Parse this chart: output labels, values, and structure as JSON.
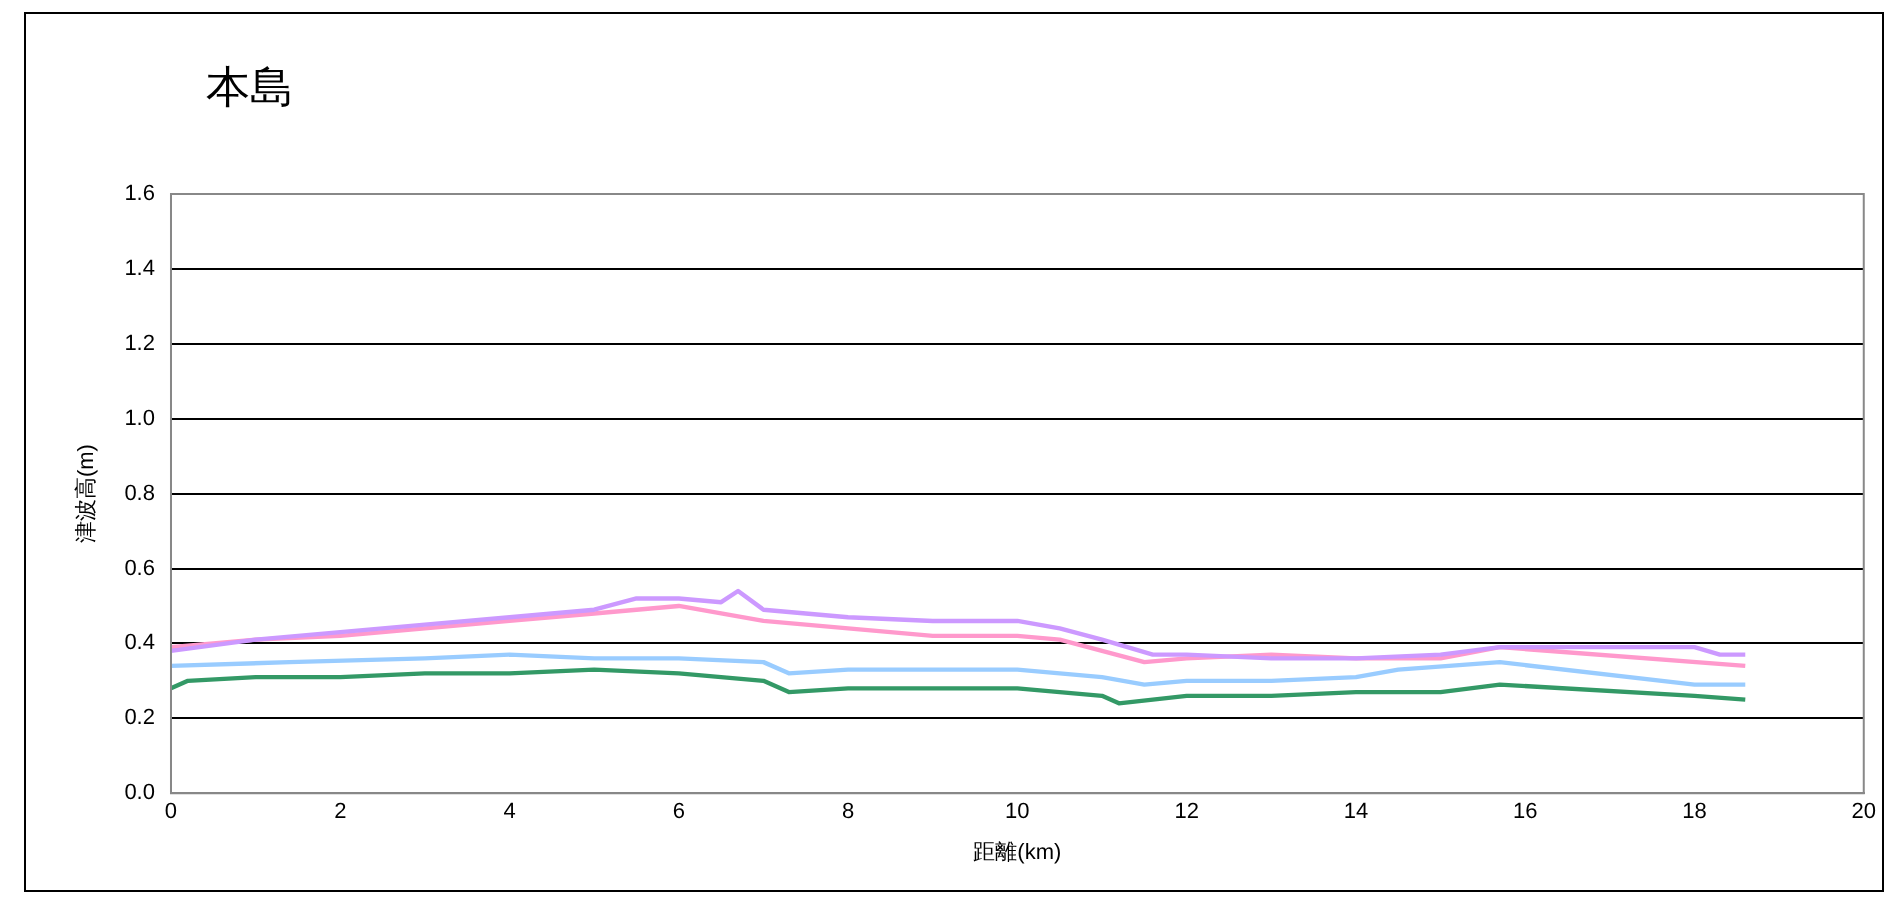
{
  "chart_data": {
    "type": "line",
    "title": "本島",
    "xlabel": "距離(km)",
    "ylabel": "津波高(m)",
    "xlim": [
      0,
      20
    ],
    "xticks": [
      0,
      2,
      4,
      6,
      8,
      10,
      12,
      14,
      16,
      18,
      20
    ],
    "ylim": [
      0,
      1.6
    ],
    "yticks": [
      {
        "value": 0,
        "label": "0.0"
      },
      {
        "value": 0.2,
        "label": "0.2"
      },
      {
        "value": 0.4,
        "label": "0.4"
      },
      {
        "value": 0.6,
        "label": "0.6"
      },
      {
        "value": 0.8,
        "label": "0.8"
      },
      {
        "value": 1,
        "label": "1.0"
      },
      {
        "value": 1.2,
        "label": "1.2"
      },
      {
        "value": 1.4,
        "label": "1.4"
      },
      {
        "value": 1.6,
        "label": "1.6"
      }
    ],
    "grid": "y",
    "legend": false,
    "marker": "none",
    "line_style": "solid",
    "series": [
      {
        "color": "#cc99ff",
        "x": [
          0,
          1,
          2,
          3,
          4,
          5,
          5.5,
          6,
          6.5,
          6.7,
          7,
          8,
          9,
          10,
          10.5,
          11,
          11.6,
          12,
          13,
          14,
          15,
          15.7,
          18,
          18.3,
          18.6
        ],
        "values": [
          0.38,
          0.41,
          0.43,
          0.45,
          0.47,
          0.49,
          0.52,
          0.52,
          0.51,
          0.54,
          0.49,
          0.47,
          0.46,
          0.46,
          0.44,
          0.41,
          0.37,
          0.37,
          0.36,
          0.36,
          0.37,
          0.39,
          0.39,
          0.37,
          0.37
        ]
      },
      {
        "color": "#ff99cc",
        "x": [
          0,
          1,
          2,
          3,
          4,
          5,
          6,
          7,
          8,
          9,
          10,
          10.5,
          11,
          11.5,
          12,
          13,
          14,
          15,
          15.7,
          18.6
        ],
        "values": [
          0.39,
          0.41,
          0.42,
          0.44,
          0.46,
          0.48,
          0.5,
          0.46,
          0.44,
          0.42,
          0.42,
          0.41,
          0.38,
          0.35,
          0.36,
          0.37,
          0.36,
          0.36,
          0.39,
          0.34
        ]
      },
      {
        "color": "#99ccff",
        "x": [
          0,
          1.4,
          3,
          4,
          5,
          6,
          7,
          7.3,
          8,
          9,
          10,
          11,
          11.5,
          12,
          13,
          14,
          14.5,
          15.7,
          18,
          18.6
        ],
        "values": [
          0.34,
          0.35,
          0.36,
          0.37,
          0.36,
          0.36,
          0.35,
          0.32,
          0.33,
          0.33,
          0.33,
          0.31,
          0.29,
          0.3,
          0.3,
          0.31,
          0.33,
          0.35,
          0.29,
          0.29
        ]
      },
      {
        "color": "#339966",
        "x": [
          0,
          0.2,
          1,
          2,
          3,
          4,
          5,
          6,
          7,
          7.3,
          8,
          9,
          10,
          11,
          11.2,
          12,
          13,
          14,
          15,
          15.7,
          18,
          18.6
        ],
        "values": [
          0.28,
          0.3,
          0.31,
          0.31,
          0.32,
          0.32,
          0.33,
          0.32,
          0.3,
          0.27,
          0.28,
          0.28,
          0.28,
          0.26,
          0.24,
          0.26,
          0.26,
          0.27,
          0.27,
          0.29,
          0.26,
          0.25
        ]
      }
    ]
  }
}
